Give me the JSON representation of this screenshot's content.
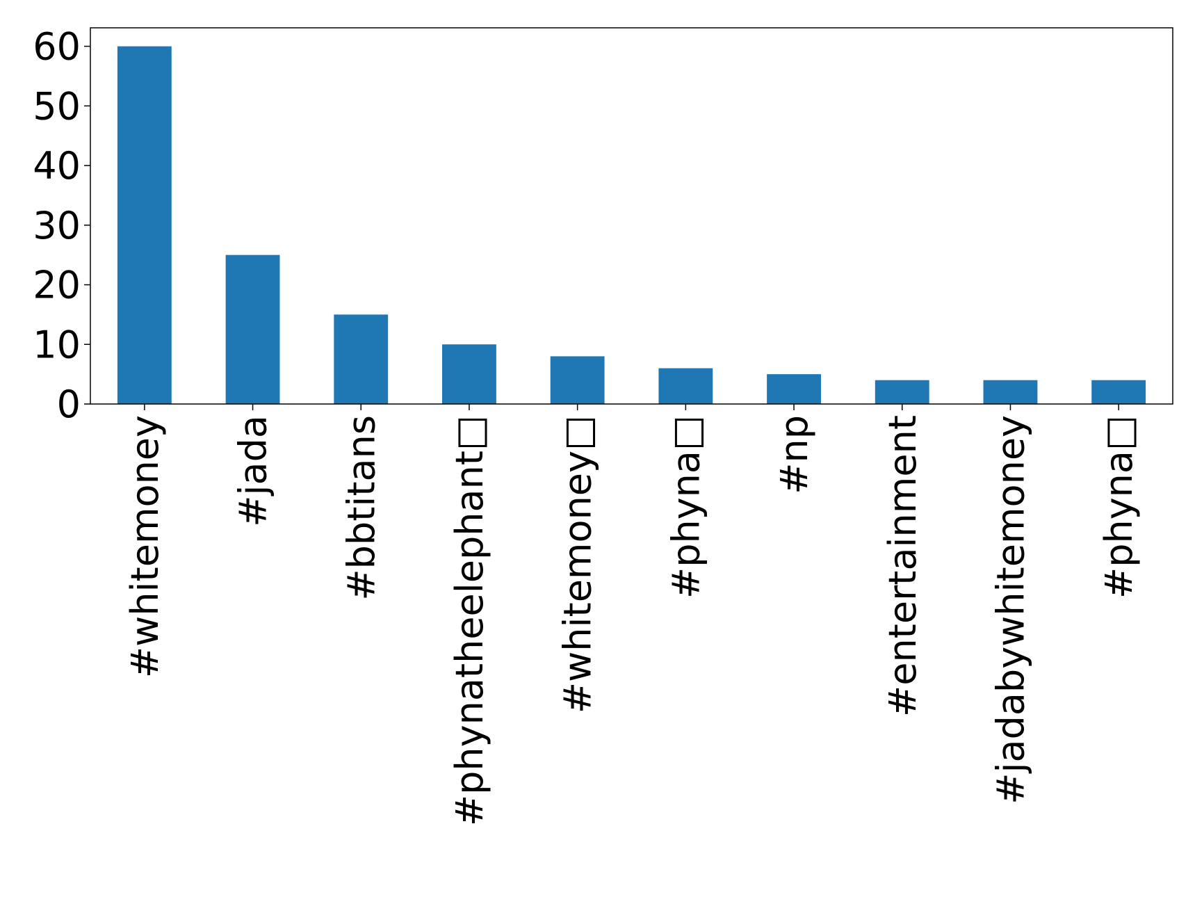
{
  "chart_data": {
    "type": "bar",
    "categories": [
      "#whitemoney",
      "#jada",
      "#bbtitans",
      "#phynatheelephant□",
      "#whitemoney□",
      "#phyna□",
      "#np",
      "#entertainment",
      "#jadabywhitemoney",
      "#phyna□"
    ],
    "values": [
      60,
      25,
      15,
      10,
      8,
      6,
      5,
      4,
      4,
      4
    ],
    "color": "#1f77b4",
    "ylim": [
      0,
      63.1
    ],
    "yticks": [
      0,
      10,
      20,
      30,
      40,
      50,
      60
    ],
    "grid": false
  }
}
